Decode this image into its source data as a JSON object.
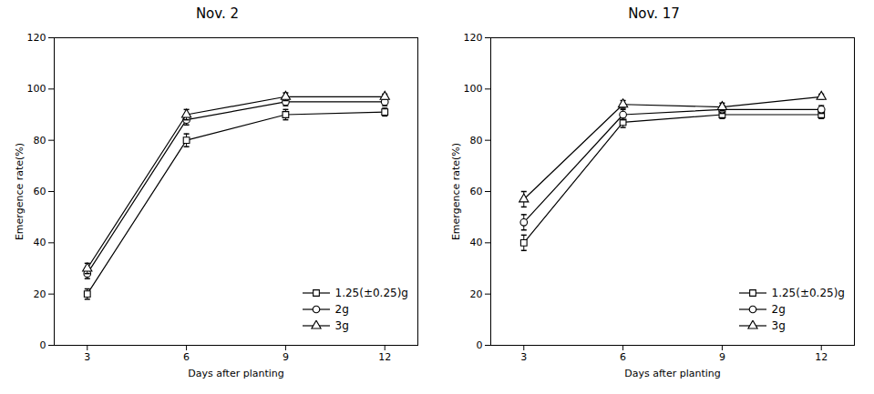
{
  "chart_data": [
    {
      "type": "line",
      "title": "Nov. 2",
      "x": [
        3,
        6,
        9,
        12
      ],
      "series": [
        {
          "name": "1.25(±0.25)g",
          "marker": "square",
          "values": [
            20,
            80,
            90,
            91
          ],
          "errors": [
            2,
            2.5,
            2,
            1.5
          ]
        },
        {
          "name": "2g",
          "marker": "circle",
          "values": [
            28,
            88,
            95,
            95
          ],
          "errors": [
            2,
            2,
            1.5,
            1.5
          ]
        },
        {
          "name": "3g",
          "marker": "triangle",
          "values": [
            30,
            90,
            97,
            97
          ],
          "errors": [
            2,
            2,
            1.5,
            1
          ]
        }
      ],
      "xlabel": "Days after planting",
      "ylabel": "Emergence rate(%)",
      "xlim": [
        2,
        13
      ],
      "xticks": [
        3,
        6,
        9,
        12
      ],
      "ylim": [
        0,
        120
      ],
      "yticks": [
        0,
        20,
        40,
        60,
        80,
        100,
        120
      ],
      "color": "black",
      "grid": false,
      "legend": "lower right"
    },
    {
      "type": "line",
      "title": "Nov. 17",
      "x": [
        3,
        6,
        9,
        12
      ],
      "series": [
        {
          "name": "1.25(±0.25)g",
          "marker": "square",
          "values": [
            40,
            87,
            90,
            90
          ],
          "errors": [
            3,
            2,
            1.5,
            1.5
          ]
        },
        {
          "name": "2g",
          "marker": "circle",
          "values": [
            48,
            90,
            92,
            92
          ],
          "errors": [
            3,
            2,
            1.5,
            1.5
          ]
        },
        {
          "name": "3g",
          "marker": "triangle",
          "values": [
            57,
            94,
            93,
            97
          ],
          "errors": [
            3,
            1.5,
            1.5,
            1
          ]
        }
      ],
      "xlabel": "Days after planting",
      "ylabel": "Emergence rate(%)",
      "xlim": [
        2,
        13
      ],
      "xticks": [
        3,
        6,
        9,
        12
      ],
      "ylim": [
        0,
        120
      ],
      "yticks": [
        0,
        20,
        40,
        60,
        80,
        100,
        120
      ],
      "color": "black",
      "grid": false,
      "legend": "lower right"
    }
  ]
}
